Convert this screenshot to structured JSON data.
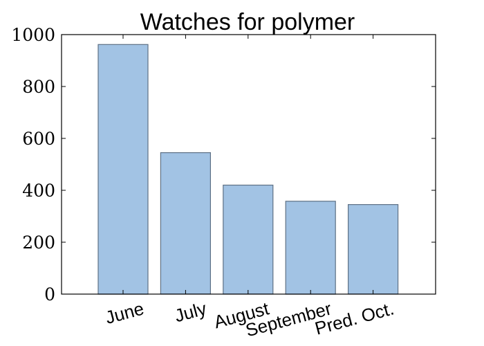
{
  "chart_data": {
    "type": "bar",
    "title": "Watches for polymer",
    "xlabel": "",
    "ylabel": "",
    "categories": [
      "June",
      "July",
      "August",
      "September",
      "Pred. Oct."
    ],
    "values": [
      962,
      545,
      420,
      358,
      345
    ],
    "ylim": [
      0,
      1000
    ],
    "yticks": [
      "0",
      "200",
      "400",
      "600",
      "800",
      "1000"
    ],
    "grid": false,
    "legend": "none",
    "colors": {
      "bar_fill": "#a2c3e4",
      "bar_edge": "#5e7084",
      "axis": "#000000"
    }
  }
}
